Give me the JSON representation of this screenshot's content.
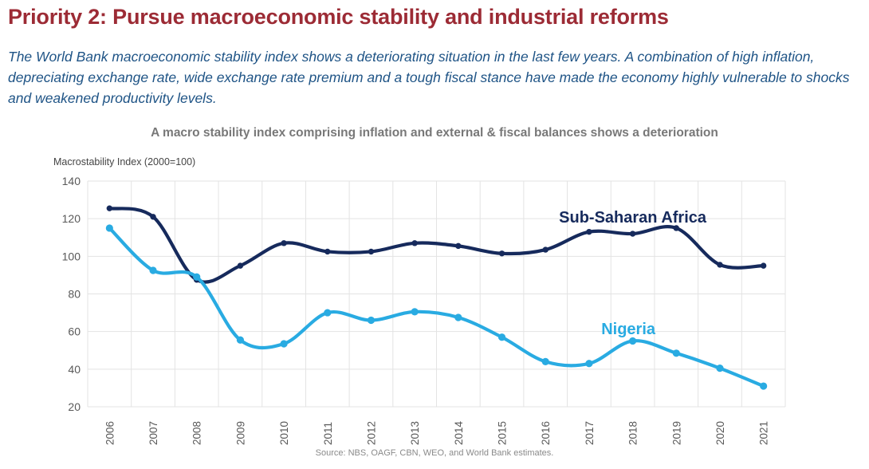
{
  "page": {
    "title": "Priority 2: Pursue macroeconomic stability and industrial reforms",
    "subtitle": "The World Bank macroeconomic stability index shows a deteriorating situation in the last few years. A combination of high inflation, depreciating exchange rate, wide exchange rate premium and a tough fiscal stance have made the economy highly vulnerable to shocks and weakened productivity levels."
  },
  "chart": {
    "title": "A macro stability index comprising inflation and external & fiscal balances shows a deterioration",
    "axis_unit_label": "Macrostability Index (2000=100)",
    "source": "Source: NBS, OAGF, CBN, WEO, and World Bank estimates."
  },
  "colors": {
    "page_title": "#9C2B35",
    "page_subtitle": "#1F5486",
    "chart_title": "#787878",
    "gridline": "#E3E3E3",
    "tick_label": "#595959",
    "source_text": "#8A8A8A"
  },
  "chart_data": {
    "type": "line",
    "categories": [
      "2006",
      "2007",
      "2008",
      "2009",
      "2010",
      "2011",
      "2012",
      "2013",
      "2014",
      "2015",
      "2016",
      "2017",
      "2018",
      "2019",
      "2020",
      "2021"
    ],
    "series": [
      {
        "id": "ssa",
        "name": "Sub-Saharan Africa",
        "color": "#162A5C",
        "values": [
          125.5,
          121,
          87.5,
          95,
          107,
          102.5,
          102.5,
          107,
          105.5,
          101.5,
          103.5,
          113,
          112,
          115,
          95.5,
          95
        ],
        "label": {
          "xi": 12.0,
          "value": 118
        }
      },
      {
        "id": "nigeria",
        "name": "Nigeria",
        "color": "#29ABE2",
        "values": [
          115,
          92.5,
          89,
          55.5,
          53.5,
          70,
          66,
          70.5,
          67.5,
          57,
          44,
          43,
          55,
          48.5,
          40.5,
          31
        ],
        "label": {
          "xi": 11.9,
          "value": 58.5
        }
      }
    ],
    "ylim": [
      20,
      140
    ],
    "ytick_step": 20,
    "grid": true,
    "legend_position": "inline-labels",
    "title": "A macro stability index comprising inflation and external & fiscal balances shows a deterioration",
    "xlabel": "",
    "ylabel": "Macrostability Index (2000=100)"
  }
}
